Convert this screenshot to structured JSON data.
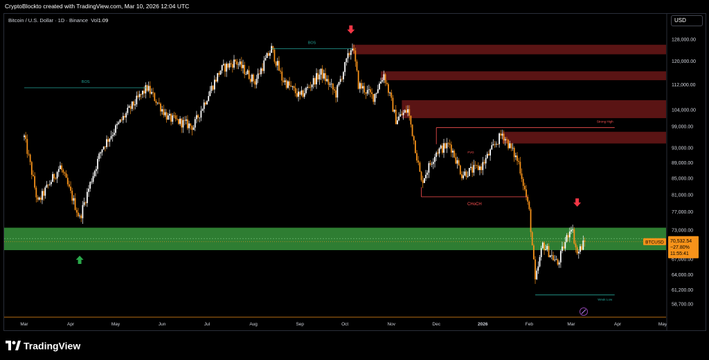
{
  "header": {
    "created_by": "CryptoBlockto created with TradingView.com, Mar 10, 2026 12:04 UTC"
  },
  "symbol_line": {
    "text": "Bitcoin / U.S. Dollar · 1D · Binance",
    "vol_label": "Vol",
    "vol_value": "1.09"
  },
  "currency_button": "USD",
  "brand": "TradingView",
  "colors": {
    "up": "#ffffff",
    "down": "#f7931a",
    "supply_zone": "#5a1414",
    "demand_zone": "#2e7d32",
    "arrow_down": "#f23645",
    "arrow_up": "#2aa84a",
    "bos_line": "#26a69a",
    "structure_line": "#ff5252"
  },
  "chart_data": {
    "type": "candlestick",
    "symbol": "BTCUSD",
    "x_axis_labels": [
      "Mar",
      "Apr",
      "May",
      "Jun",
      "Jul",
      "Aug",
      "Sep",
      "Oct",
      "Nov",
      "Dec",
      "2026",
      "Feb",
      "Mar",
      "Apr",
      "May"
    ],
    "y_axis_labels": [
      "128,000.00",
      "120,000.00",
      "112,000.00",
      "104,000.00",
      "99,000.00",
      "93,000.00",
      "89,000.00",
      "85,000.00",
      "81,000.00",
      "77,000.00",
      "73,000.00",
      "67,000.00",
      "64,000.00",
      "61,200.00",
      "58,700.00"
    ],
    "y_axis_values": [
      128000,
      120000,
      112000,
      104000,
      99000,
      93000,
      89000,
      85000,
      81000,
      77000,
      73000,
      67000,
      64000,
      61200,
      58700
    ],
    "price_path": [
      [
        "2025-03-01",
        96000
      ],
      [
        "2025-03-10",
        79000
      ],
      [
        "2025-03-25",
        88000
      ],
      [
        "2025-04-07",
        75500
      ],
      [
        "2025-04-22",
        93000
      ],
      [
        "2025-05-10",
        104000
      ],
      [
        "2025-05-22",
        111000
      ],
      [
        "2025-06-05",
        101500
      ],
      [
        "2025-06-22",
        99000
      ],
      [
        "2025-07-10",
        117000
      ],
      [
        "2025-07-20",
        120000
      ],
      [
        "2025-08-02",
        113000
      ],
      [
        "2025-08-13",
        124500
      ],
      [
        "2025-08-20",
        114000
      ],
      [
        "2025-09-01",
        108000
      ],
      [
        "2025-09-15",
        116000
      ],
      [
        "2025-09-25",
        109000
      ],
      [
        "2025-10-06",
        126000
      ],
      [
        "2025-10-10",
        112000
      ],
      [
        "2025-10-20",
        108000
      ],
      [
        "2025-10-27",
        115500
      ],
      [
        "2025-11-04",
        101000
      ],
      [
        "2025-11-12",
        104000
      ],
      [
        "2025-11-21",
        84000
      ],
      [
        "2025-12-01",
        92000
      ],
      [
        "2025-12-10",
        94000
      ],
      [
        "2025-12-18",
        86000
      ],
      [
        "2025-12-31",
        88000
      ],
      [
        "2026-01-14",
        97000
      ],
      [
        "2026-01-25",
        89000
      ],
      [
        "2026-02-01",
        77000
      ],
      [
        "2026-02-05",
        62500
      ],
      [
        "2026-02-10",
        70000
      ],
      [
        "2026-02-20",
        66000
      ],
      [
        "2026-03-01",
        74000
      ],
      [
        "2026-03-05",
        68000
      ],
      [
        "2026-03-10",
        70532.54
      ]
    ],
    "bos": [
      {
        "label": "BOS",
        "from": "2025-03-01",
        "to": "2025-05-22",
        "price": 111000
      },
      {
        "label": "BOS",
        "from": "2025-08-13",
        "to": "2025-10-06",
        "price": 124500
      }
    ],
    "choch": {
      "label": "CHoCH",
      "from": "2025-11-21",
      "to": "2026-01-31",
      "price": 80500
    },
    "strong_high": {
      "label": "Strong High",
      "from": "2025-12-01",
      "to": "2026-03-30",
      "price": 98700
    },
    "weak_low": {
      "label": "Weak Low",
      "from": "2026-02-05",
      "to": "2026-03-30",
      "price": 60300
    },
    "fvg_label": {
      "label": "FVG",
      "date": "2025-12-24",
      "price": 91500
    },
    "supply_zones": [
      {
        "from": "2025-10-06",
        "to": "2026-05-31",
        "top": 126000,
        "bottom": 122500
      },
      {
        "from": "2025-10-25",
        "to": "2026-05-31",
        "top": 116500,
        "bottom": 113500
      },
      {
        "from": "2025-11-08",
        "to": "2026-05-31",
        "top": 107000,
        "bottom": 101500
      },
      {
        "from": "2026-01-14",
        "to": "2026-05-31",
        "top": 97500,
        "bottom": 94200
      }
    ],
    "demand_zone": {
      "from": "2025-03-01",
      "to": "2026-05-31",
      "top": 73500,
      "bottom": 68800,
      "mid": 71200
    },
    "arrows": [
      {
        "dir": "down",
        "date": "2025-10-05",
        "price": 131500
      },
      {
        "dir": "down",
        "date": "2026-03-05",
        "price": 79000
      },
      {
        "dir": "up",
        "date": "2025-04-07",
        "price": 67000
      }
    ],
    "last_price": {
      "label": "BTCUSD",
      "price_text": "70,532.54",
      "change_text": "−27.80%",
      "countdown": "11:55:41",
      "price": 70532.54
    }
  }
}
